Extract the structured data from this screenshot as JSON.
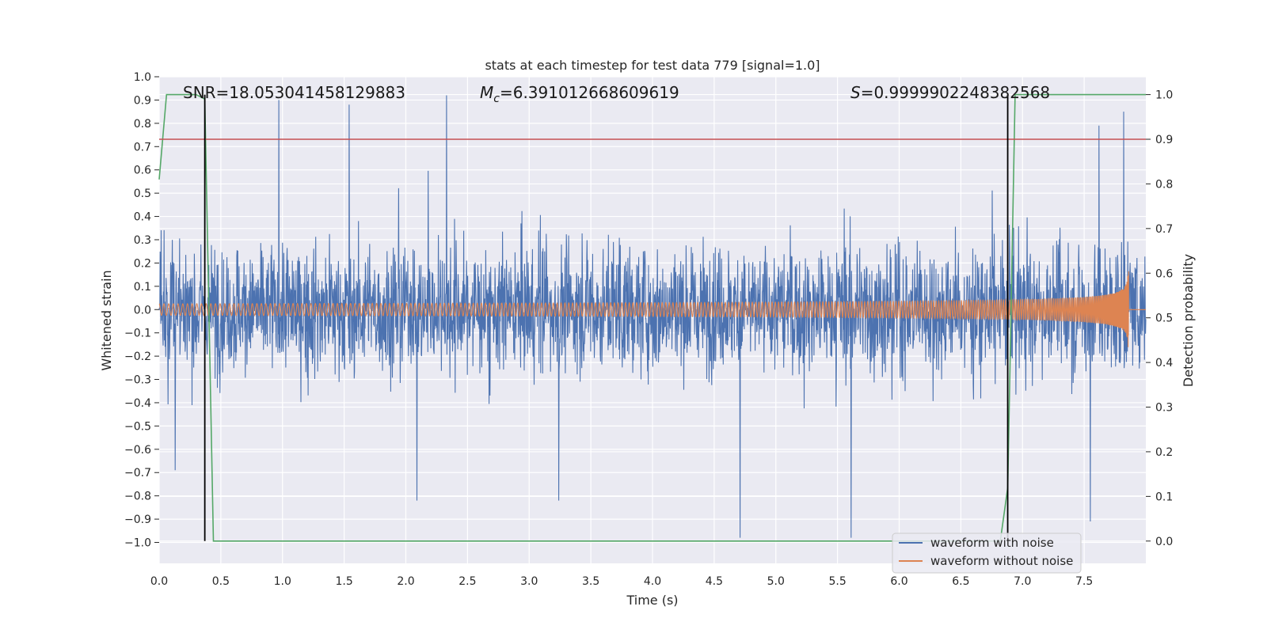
{
  "chart_data": {
    "type": "line",
    "title": "stats at each timestep for test data 779 [signal=1.0]",
    "xlabel": "Time (s)",
    "ylabel": "Whitened strain",
    "y2label": "Detection probability",
    "xlim": [
      0.0,
      8.0
    ],
    "ylim": [
      -1.09,
      1.0
    ],
    "y2lim": [
      -0.05,
      1.04
    ],
    "xticks": [
      "0.0",
      "0.5",
      "1.0",
      "1.5",
      "2.0",
      "2.5",
      "3.0",
      "3.5",
      "4.0",
      "4.5",
      "5.0",
      "5.5",
      "6.0",
      "6.5",
      "7.0",
      "7.5"
    ],
    "yticks": [
      "1.0",
      "0.9",
      "0.8",
      "0.7",
      "0.6",
      "0.5",
      "0.4",
      "0.3",
      "0.2",
      "0.1",
      "0.0",
      "−0.1",
      "−0.2",
      "−0.3",
      "−0.4",
      "−0.5",
      "−0.6",
      "−0.7",
      "−0.8",
      "−0.9",
      "−1.0"
    ],
    "y2ticks": [
      "1.0",
      "0.9",
      "0.8",
      "0.7",
      "0.6",
      "0.5",
      "0.4",
      "0.3",
      "0.2",
      "0.1",
      "0.0"
    ],
    "grid": true,
    "legend_position": "bottom-right",
    "colors": {
      "background": "#eaeaf2",
      "grid": "#ffffff",
      "noise": "#4c72b0",
      "signal": "#dd8452",
      "probability": "#55a868",
      "threshold": "#c44e52",
      "marker": "#000000"
    },
    "annotations": {
      "snr": "SNR=18.053041458129883",
      "mc": "=6.391012668609619",
      "mc_symbol": "M",
      "mc_sub": "c",
      "s": "=0.9999902248382568",
      "s_symbol": "S"
    },
    "threshold_y2": 0.9,
    "vlines_x": [
      0.37,
      6.88
    ],
    "series": [
      {
        "name": "waveform with noise",
        "kind": "noise",
        "x_range": [
          0.0,
          8.0
        ],
        "approx_amplitude": 0.3,
        "extreme_peaks": [
          {
            "x": 0.97,
            "y": 0.9
          },
          {
            "x": 1.54,
            "y": 0.88
          },
          {
            "x": 2.33,
            "y": 0.92
          },
          {
            "x": 7.82,
            "y": 0.85
          },
          {
            "x": 7.62,
            "y": 0.79
          },
          {
            "x": 0.13,
            "y": -0.69
          },
          {
            "x": 2.09,
            "y": -0.82
          },
          {
            "x": 3.24,
            "y": -0.82
          },
          {
            "x": 4.71,
            "y": -0.98
          },
          {
            "x": 5.61,
            "y": -0.98
          },
          {
            "x": 7.55,
            "y": -0.91
          }
        ]
      },
      {
        "name": "waveform without noise",
        "kind": "chirp",
        "x_range": [
          0.0,
          7.88
        ],
        "amplitude_start": 0.025,
        "amplitude_peak": 0.42,
        "peak_time": 7.86,
        "frequency_start": 26
      },
      {
        "name": "",
        "kind": "probability",
        "axis": "y2",
        "x": [
          0.0,
          0.06,
          0.12,
          0.3,
          0.37,
          0.44,
          6.82,
          6.88,
          6.94,
          8.0
        ],
        "y": [
          0.81,
          1.0,
          1.0,
          1.0,
          0.99,
          0.0,
          0.0,
          0.12,
          1.0,
          1.0
        ]
      }
    ]
  }
}
